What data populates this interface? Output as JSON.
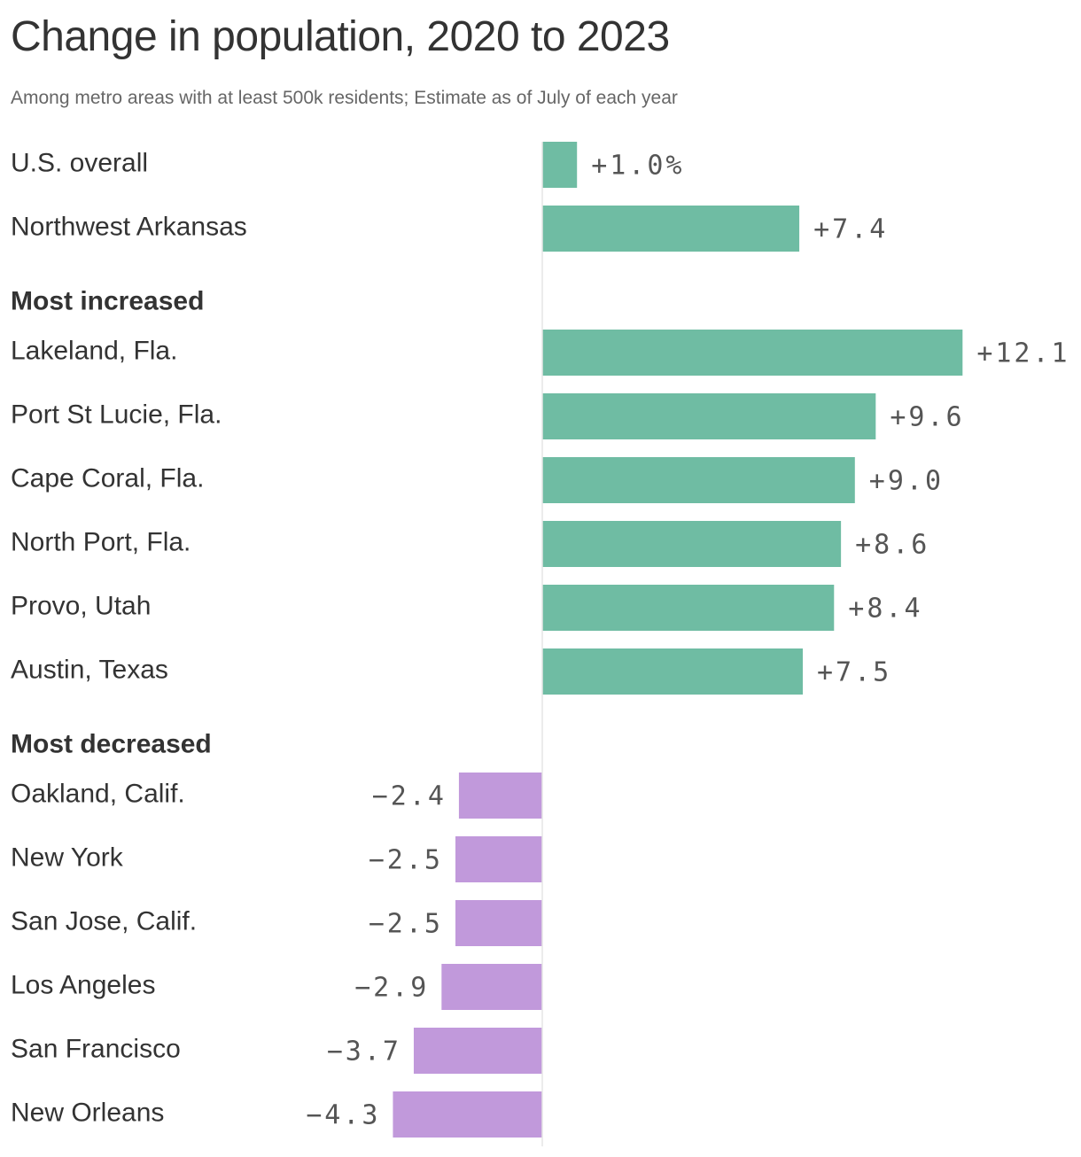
{
  "chart_data": {
    "type": "bar",
    "orientation": "horizontal",
    "title": "Change in population, 2020 to 2023",
    "subtitle": "Among metro areas with at least 500k residents; Estimate as of July of each year",
    "unit": "%",
    "groups": [
      {
        "label": "",
        "rows": [
          {
            "category": "U.S. overall",
            "value": 1.0,
            "label": "+1.0%"
          },
          {
            "category": "Northwest Arkansas",
            "value": 7.4,
            "label": "+7.4"
          }
        ]
      },
      {
        "label": "Most increased",
        "rows": [
          {
            "category": "Lakeland, Fla.",
            "value": 12.1,
            "label": "+12.1"
          },
          {
            "category": "Port St Lucie, Fla.",
            "value": 9.6,
            "label": "+9.6"
          },
          {
            "category": "Cape Coral, Fla.",
            "value": 9.0,
            "label": "+9.0"
          },
          {
            "category": "North Port, Fla.",
            "value": 8.6,
            "label": "+8.6"
          },
          {
            "category": "Provo, Utah",
            "value": 8.4,
            "label": "+8.4"
          },
          {
            "category": "Austin, Texas",
            "value": 7.5,
            "label": "+7.5"
          }
        ]
      },
      {
        "label": "Most decreased",
        "rows": [
          {
            "category": "Oakland, Calif.",
            "value": -2.4,
            "label": "−2.4"
          },
          {
            "category": "New York",
            "value": -2.5,
            "label": "−2.5"
          },
          {
            "category": "San Jose, Calif.",
            "value": -2.5,
            "label": "−2.5"
          },
          {
            "category": "Los Angeles",
            "value": -2.9,
            "label": "−2.9"
          },
          {
            "category": "San Francisco",
            "value": -3.7,
            "label": "−3.7"
          },
          {
            "category": "New Orleans",
            "value": -4.3,
            "label": "−4.3"
          }
        ]
      }
    ],
    "colors": {
      "positive": "#6fbca3",
      "negative": "#c199db",
      "zero_line": "#e5e5e5",
      "label_text": "#333333",
      "value_text": "#555555"
    },
    "xlim": [
      -4.3,
      12.1
    ],
    "grid": false,
    "legend": "none"
  }
}
